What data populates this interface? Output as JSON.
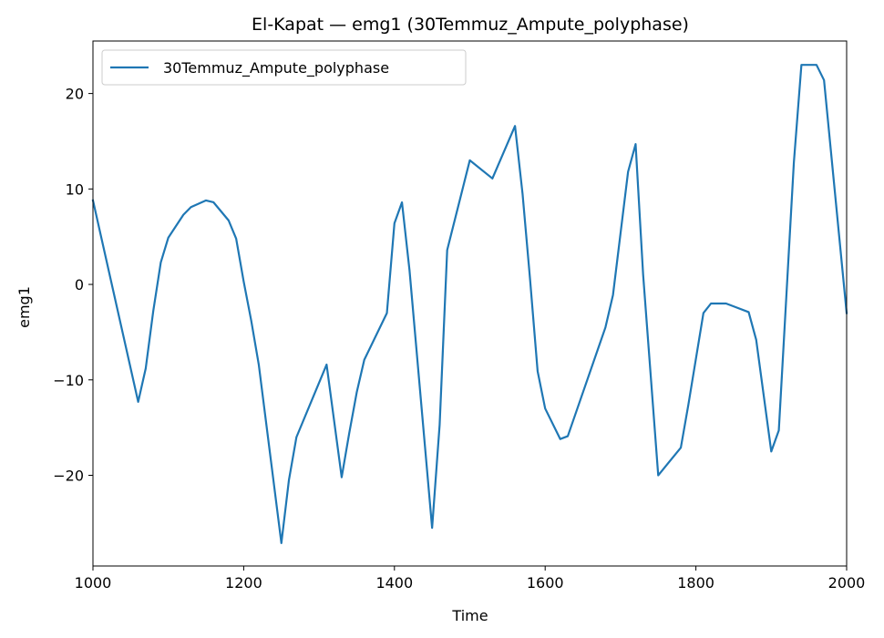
{
  "chart_data": {
    "type": "line",
    "title": "El-Kapat — emg1 (30Temmuz_Ampute_polyphase)",
    "xlabel": "Time",
    "ylabel": "emg1",
    "xlim": [
      1000,
      2000
    ],
    "ylim": [
      -29.5,
      25.5
    ],
    "x_ticks": [
      1000,
      1200,
      1400,
      1600,
      1800,
      2000
    ],
    "y_ticks": [
      -20,
      -10,
      0,
      10,
      20
    ],
    "x_tick_labels": [
      "1000",
      "1200",
      "1400",
      "1600",
      "1800",
      "2000"
    ],
    "y_tick_labels": [
      "−20",
      "−10",
      "0",
      "10",
      "20"
    ],
    "grid": false,
    "legend_position": "upper-left",
    "series": [
      {
        "name": "30Temmuz_Ampute_polyphase",
        "color": "#1f77b4",
        "points": [
          [
            1000,
            8.8
          ],
          [
            1060,
            -12.3
          ],
          [
            1070,
            -8.8
          ],
          [
            1080,
            -2.8
          ],
          [
            1090,
            2.3
          ],
          [
            1100,
            4.9
          ],
          [
            1120,
            7.3
          ],
          [
            1130,
            8.1
          ],
          [
            1150,
            8.8
          ],
          [
            1160,
            8.6
          ],
          [
            1180,
            6.7
          ],
          [
            1190,
            4.8
          ],
          [
            1200,
            0.3
          ],
          [
            1210,
            -3.8
          ],
          [
            1220,
            -8.4
          ],
          [
            1250,
            -27.1
          ],
          [
            1260,
            -20.5
          ],
          [
            1270,
            -16.0
          ],
          [
            1310,
            -8.4
          ],
          [
            1330,
            -20.2
          ],
          [
            1340,
            -15.6
          ],
          [
            1350,
            -11.3
          ],
          [
            1360,
            -7.9
          ],
          [
            1390,
            -3.0
          ],
          [
            1400,
            6.4
          ],
          [
            1410,
            8.6
          ],
          [
            1420,
            1.5
          ],
          [
            1450,
            -25.5
          ],
          [
            1460,
            -14.7
          ],
          [
            1470,
            3.6
          ],
          [
            1500,
            13.0
          ],
          [
            1530,
            11.1
          ],
          [
            1560,
            16.6
          ],
          [
            1570,
            9.5
          ],
          [
            1580,
            0.5
          ],
          [
            1590,
            -9.1
          ],
          [
            1600,
            -13.0
          ],
          [
            1620,
            -16.2
          ],
          [
            1630,
            -15.9
          ],
          [
            1680,
            -4.5
          ],
          [
            1690,
            -1.1
          ],
          [
            1710,
            11.8
          ],
          [
            1720,
            14.7
          ],
          [
            1730,
            1.0
          ],
          [
            1750,
            -20.0
          ],
          [
            1780,
            -17.1
          ],
          [
            1790,
            -12.6
          ],
          [
            1810,
            -3.0
          ],
          [
            1820,
            -2.0
          ],
          [
            1840,
            -2.0
          ],
          [
            1850,
            -2.3
          ],
          [
            1870,
            -2.9
          ],
          [
            1880,
            -5.8
          ],
          [
            1900,
            -17.5
          ],
          [
            1910,
            -15.3
          ],
          [
            1930,
            12.8
          ],
          [
            1940,
            23.0
          ],
          [
            1960,
            23.0
          ],
          [
            1970,
            21.4
          ],
          [
            2000,
            -3.0
          ]
        ]
      }
    ]
  }
}
